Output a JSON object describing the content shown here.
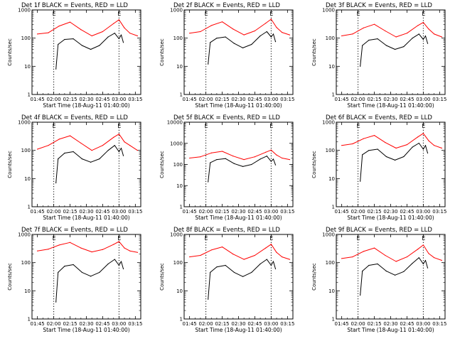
{
  "figure": {
    "x_label": "Start Time (18-Aug-11 01:40:00)",
    "y_label": "Counts/sec",
    "marker_labels": [
      "E",
      "E"
    ],
    "colors": {
      "events": "#000000",
      "lld": "#ff0000",
      "axes": "#000000",
      "background": "#ffffff"
    }
  },
  "chart_data": [
    {
      "type": "line",
      "title": "Det 1f BLACK = Events, RED = LLD",
      "ylog": true,
      "ylim": [
        1,
        1000
      ],
      "xticks": [
        "01:45",
        "02:00",
        "02:15",
        "02:30",
        "02:45",
        "03:00",
        "03:15"
      ],
      "yticks": [
        "1",
        "10",
        "100",
        "1000"
      ],
      "xlabel": "Start Time (18-Aug-11 01:40:00)",
      "ylabel": "Counts/sec",
      "markers_minutes": [
        20,
        80
      ],
      "series": [
        {
          "name": "Events",
          "color": "#000000",
          "x_minutes": [
            22,
            24,
            30,
            38,
            46,
            54,
            62,
            70,
            76,
            80,
            82,
            84
          ],
          "values": [
            8,
            60,
            90,
            95,
            55,
            40,
            55,
            110,
            150,
            95,
            130,
            70
          ]
        },
        {
          "name": "LLD",
          "color": "#ff0000",
          "x_minutes": [
            5,
            15,
            25,
            35,
            45,
            55,
            65,
            75,
            80,
            85,
            90,
            97
          ],
          "values": [
            140,
            155,
            270,
            370,
            200,
            120,
            170,
            330,
            450,
            230,
            150,
            120
          ]
        }
      ]
    },
    {
      "type": "line",
      "title": "Det 2f BLACK = Events, RED = LLD",
      "ylog": true,
      "ylim": [
        1,
        1000
      ],
      "xticks": [
        "01:45",
        "02:00",
        "02:15",
        "02:30",
        "02:45",
        "03:00",
        "03:15"
      ],
      "yticks": [
        "1",
        "10",
        "100",
        "1000"
      ],
      "xlabel": "Start Time (18-Aug-11 01:40:00)",
      "ylabel": "Counts/sec",
      "markers_minutes": [
        20,
        80
      ],
      "series": [
        {
          "name": "Events",
          "color": "#000000",
          "x_minutes": [
            22,
            24,
            30,
            38,
            46,
            54,
            62,
            70,
            76,
            80,
            82,
            84
          ],
          "values": [
            12,
            70,
            100,
            110,
            65,
            45,
            60,
            120,
            170,
            110,
            140,
            75
          ]
        },
        {
          "name": "LLD",
          "color": "#ff0000",
          "x_minutes": [
            5,
            15,
            25,
            35,
            45,
            55,
            65,
            75,
            80,
            85,
            90,
            97
          ],
          "values": [
            150,
            170,
            280,
            380,
            210,
            130,
            180,
            340,
            470,
            240,
            160,
            130
          ]
        }
      ]
    },
    {
      "type": "line",
      "title": "Det 3f BLACK = Events, RED = LLD",
      "ylog": true,
      "ylim": [
        1,
        1000
      ],
      "xticks": [
        "01:45",
        "02:00",
        "02:15",
        "02:30",
        "02:45",
        "03:00",
        "03:15"
      ],
      "yticks": [
        "1",
        "10",
        "100",
        "1000"
      ],
      "xlabel": "Start Time (18-Aug-11 01:40:00)",
      "ylabel": "Counts/sec",
      "markers_minutes": [
        20,
        80
      ],
      "series": [
        {
          "name": "Events",
          "color": "#000000",
          "x_minutes": [
            22,
            24,
            30,
            38,
            46,
            54,
            62,
            70,
            76,
            80,
            82,
            84
          ],
          "values": [
            10,
            55,
            85,
            95,
            55,
            40,
            50,
            100,
            140,
            90,
            120,
            65
          ]
        },
        {
          "name": "LLD",
          "color": "#ff0000",
          "x_minutes": [
            5,
            15,
            25,
            35,
            45,
            55,
            65,
            75,
            80,
            85,
            90,
            97
          ],
          "values": [
            120,
            140,
            230,
            310,
            180,
            110,
            150,
            280,
            360,
            210,
            140,
            110
          ]
        }
      ]
    },
    {
      "type": "line",
      "title": "Det 4f BLACK = Events, RED = LLD",
      "ylog": true,
      "ylim": [
        1,
        1000
      ],
      "xticks": [
        "01:45",
        "02:00",
        "02:15",
        "02:30",
        "02:45",
        "03:00",
        "03:15"
      ],
      "yticks": [
        "1",
        "10",
        "100",
        "1000"
      ],
      "xlabel": "Start Time (18-Aug-11 01:40:00)",
      "ylabel": "Counts/sec",
      "markers_minutes": [
        20,
        80
      ],
      "series": [
        {
          "name": "Events",
          "color": "#000000",
          "x_minutes": [
            22,
            24,
            30,
            38,
            46,
            54,
            62,
            70,
            76,
            80,
            82,
            84
          ],
          "values": [
            7,
            50,
            80,
            90,
            50,
            38,
            50,
            100,
            150,
            90,
            120,
            65
          ]
        },
        {
          "name": "LLD",
          "color": "#ff0000",
          "x_minutes": [
            5,
            15,
            25,
            35,
            45,
            55,
            65,
            75,
            80,
            85,
            90,
            97
          ],
          "values": [
            110,
            150,
            250,
            330,
            180,
            100,
            150,
            290,
            380,
            200,
            150,
            100
          ]
        }
      ]
    },
    {
      "type": "line",
      "title": "Det 5f BLACK = Events, RED = LLD",
      "ylog": true,
      "ylim": [
        1,
        10000
      ],
      "xticks": [
        "01:45",
        "02:00",
        "02:15",
        "02:30",
        "02:45",
        "03:00",
        "03:15"
      ],
      "yticks": [
        "1",
        "10",
        "100",
        "1000",
        "10000"
      ],
      "xlabel": "Start Time (18-Aug-11 01:40:00)",
      "ylabel": "Counts/sec",
      "markers_minutes": [
        20,
        80
      ],
      "series": [
        {
          "name": "Events",
          "color": "#000000",
          "x_minutes": [
            22,
            24,
            30,
            38,
            46,
            54,
            62,
            70,
            76,
            80,
            82,
            84
          ],
          "values": [
            15,
            120,
            170,
            190,
            110,
            80,
            100,
            180,
            250,
            140,
            180,
            95
          ]
        },
        {
          "name": "LLD",
          "color": "#ff0000",
          "x_minutes": [
            5,
            15,
            25,
            35,
            45,
            55,
            65,
            75,
            80,
            85,
            90,
            97
          ],
          "values": [
            200,
            230,
            350,
            420,
            250,
            170,
            230,
            380,
            480,
            280,
            200,
            170
          ]
        }
      ]
    },
    {
      "type": "line",
      "title": "Det 6f BLACK = Events, RED = LLD",
      "ylog": true,
      "ylim": [
        1,
        1000
      ],
      "xticks": [
        "01:45",
        "02:00",
        "02:15",
        "02:30",
        "02:45",
        "03:00",
        "03:15"
      ],
      "yticks": [
        "1",
        "10",
        "100",
        "1000"
      ],
      "xlabel": "Start Time (18-Aug-11 01:40:00)",
      "ylabel": "Counts/sec",
      "markers_minutes": [
        20,
        80
      ],
      "series": [
        {
          "name": "Events",
          "color": "#000000",
          "x_minutes": [
            22,
            24,
            30,
            38,
            46,
            54,
            62,
            70,
            76,
            80,
            82,
            84
          ],
          "values": [
            8,
            70,
            100,
            110,
            60,
            45,
            60,
            130,
            180,
            110,
            150,
            80
          ]
        },
        {
          "name": "LLD",
          "color": "#ff0000",
          "x_minutes": [
            5,
            15,
            25,
            35,
            45,
            55,
            65,
            75,
            80,
            85,
            90,
            97
          ],
          "values": [
            150,
            170,
            260,
            340,
            190,
            120,
            160,
            300,
            400,
            220,
            150,
            120
          ]
        }
      ]
    },
    {
      "type": "line",
      "title": "Det 7f BLACK = Events, RED = LLD",
      "ylog": true,
      "ylim": [
        1,
        1000
      ],
      "xticks": [
        "01:45",
        "02:00",
        "02:15",
        "02:30",
        "02:45",
        "03:00",
        "03:15"
      ],
      "yticks": [
        "1",
        "10",
        "100",
        "1000"
      ],
      "xlabel": "Start Time (18-Aug-11 01:40:00)",
      "ylabel": "Counts/sec",
      "markers_minutes": [
        20,
        80
      ],
      "series": [
        {
          "name": "Events",
          "color": "#000000",
          "x_minutes": [
            22,
            24,
            30,
            38,
            46,
            54,
            62,
            70,
            76,
            80,
            82,
            84
          ],
          "values": [
            4,
            45,
            75,
            85,
            45,
            33,
            45,
            90,
            130,
            80,
            110,
            60
          ]
        },
        {
          "name": "LLD",
          "color": "#ff0000",
          "x_minutes": [
            5,
            15,
            25,
            35,
            45,
            55,
            65,
            75,
            80,
            85,
            90,
            97
          ],
          "values": [
            260,
            300,
            420,
            520,
            330,
            240,
            290,
            440,
            560,
            330,
            260,
            230
          ]
        }
      ]
    },
    {
      "type": "line",
      "title": "Det 8f BLACK = Events, RED = LLD",
      "ylog": true,
      "ylim": [
        1,
        1000
      ],
      "xticks": [
        "01:45",
        "02:00",
        "02:15",
        "02:30",
        "02:45",
        "03:00",
        "03:15"
      ],
      "yticks": [
        "1",
        "10",
        "100",
        "1000"
      ],
      "xlabel": "Start Time (18-Aug-11 01:40:00)",
      "ylabel": "Counts/sec",
      "markers_minutes": [
        20,
        80
      ],
      "series": [
        {
          "name": "Events",
          "color": "#000000",
          "x_minutes": [
            22,
            24,
            30,
            38,
            46,
            54,
            62,
            70,
            76,
            80,
            82,
            84
          ],
          "values": [
            5,
            45,
            70,
            80,
            45,
            32,
            45,
            90,
            130,
            80,
            110,
            60
          ]
        },
        {
          "name": "LLD",
          "color": "#ff0000",
          "x_minutes": [
            5,
            15,
            25,
            35,
            45,
            55,
            65,
            75,
            80,
            85,
            90,
            97
          ],
          "values": [
            160,
            180,
            280,
            360,
            200,
            130,
            180,
            330,
            450,
            230,
            160,
            130
          ]
        }
      ]
    },
    {
      "type": "line",
      "title": "Det 9f BLACK = Events, RED = LLD",
      "ylog": true,
      "ylim": [
        1,
        1000
      ],
      "xticks": [
        "01:45",
        "02:00",
        "02:15",
        "02:30",
        "02:45",
        "03:00",
        "03:15"
      ],
      "yticks": [
        "1",
        "10",
        "100",
        "1000"
      ],
      "xlabel": "Start Time (18-Aug-11 01:40:00)",
      "ylabel": "Counts/sec",
      "markers_minutes": [
        20,
        80
      ],
      "series": [
        {
          "name": "Events",
          "color": "#000000",
          "x_minutes": [
            22,
            24,
            30,
            38,
            46,
            54,
            62,
            70,
            76,
            80,
            82,
            84
          ],
          "values": [
            7,
            50,
            80,
            90,
            50,
            36,
            48,
            95,
            150,
            90,
            120,
            65
          ]
        },
        {
          "name": "LLD",
          "color": "#ff0000",
          "x_minutes": [
            5,
            15,
            25,
            35,
            45,
            55,
            65,
            75,
            80,
            85,
            90,
            97
          ],
          "values": [
            140,
            160,
            250,
            330,
            180,
            110,
            160,
            300,
            420,
            210,
            150,
            120
          ]
        }
      ]
    }
  ]
}
